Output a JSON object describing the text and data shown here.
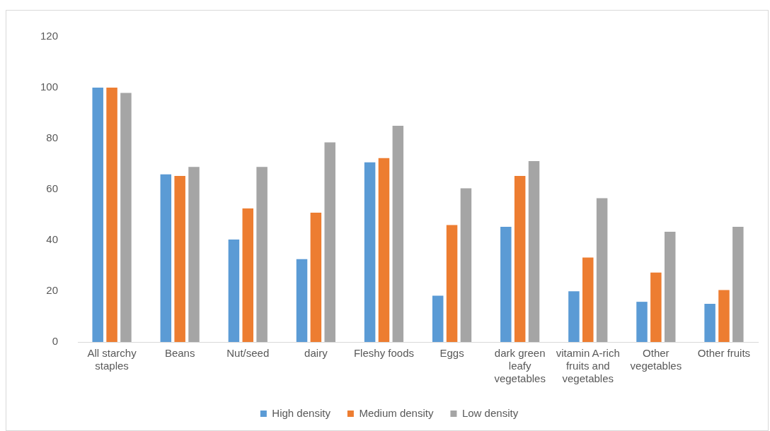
{
  "chart_data": {
    "type": "bar",
    "categories": [
      "All starchy staples",
      "Beans",
      "Nut/seed",
      "dairy",
      "Fleshy foods",
      "Eggs",
      "dark green leafy vegetables",
      "vitamin A-rich fruits and vegetables",
      "Other vegetables",
      "Other fruits"
    ],
    "series": [
      {
        "name": "High density",
        "color": "#5b9bd5",
        "values": [
          100,
          65.9,
          40.3,
          32.6,
          70.6,
          18.2,
          45.3,
          19.9,
          15.8,
          15
        ]
      },
      {
        "name": "Medium density",
        "color": "#ed7d31",
        "values": [
          100,
          65.3,
          52.5,
          50.8,
          72.3,
          46,
          65.3,
          33.2,
          27.3,
          20.4
        ]
      },
      {
        "name": "Low density",
        "color": "#a5a5a5",
        "values": [
          97.9,
          68.8,
          68.8,
          78.5,
          85,
          60.4,
          71.1,
          56.5,
          43.3,
          45.3
        ]
      }
    ],
    "ylim": [
      0,
      120
    ],
    "yticks": [
      0,
      20,
      40,
      60,
      80,
      100,
      120
    ],
    "grid": false,
    "legend": "bottom"
  }
}
